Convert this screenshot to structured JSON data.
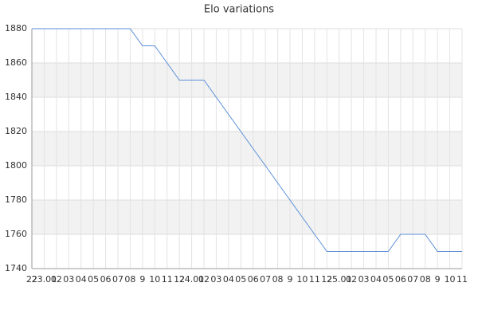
{
  "chart_data": {
    "type": "line",
    "title": "Elo variations",
    "categories": [
      "22",
      "23.01",
      "02",
      "03",
      "04",
      "05",
      "06",
      "07",
      "08",
      "9",
      "10",
      "11",
      "12",
      "24.01",
      "02",
      "03",
      "04",
      "05",
      "06",
      "07",
      "08",
      "9",
      "10",
      "11",
      "12",
      "25.01",
      "02",
      "03",
      "04",
      "05",
      "06",
      "07",
      "08",
      "9",
      "10",
      "11"
    ],
    "series": [
      {
        "name": "Elo",
        "color": "#5b8fd9",
        "values": [
          1880,
          1880,
          1880,
          1880,
          1880,
          1880,
          1880,
          1880,
          1880,
          1870,
          1870,
          1860,
          1850,
          1850,
          1850,
          1840,
          1830,
          1820,
          1810,
          1800,
          1790,
          1780,
          1770,
          1760,
          1750,
          1750,
          1750,
          1750,
          1750,
          1750,
          1760,
          1760,
          1760,
          1750,
          1750,
          1750
        ]
      }
    ],
    "ylim": [
      1740,
      1880
    ],
    "yticks": [
      1740,
      1760,
      1780,
      1800,
      1820,
      1840,
      1860,
      1880
    ],
    "grid": true,
    "alternate_bands": true,
    "legend": false
  }
}
